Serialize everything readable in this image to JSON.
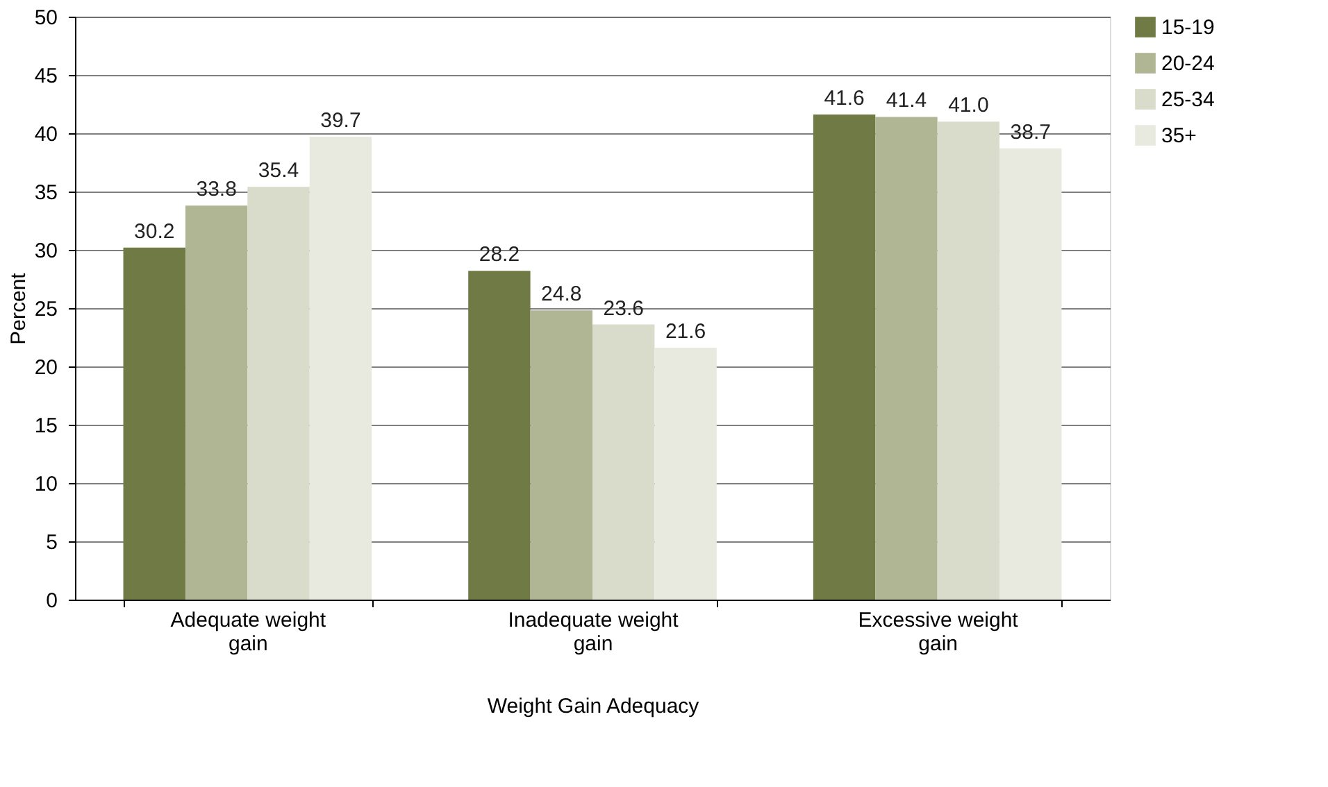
{
  "chart_data": {
    "type": "bar",
    "xlabel": "Weight Gain Adequacy",
    "ylabel": "Percent",
    "categories": [
      "Adequate weight gain",
      "Inadequate weight gain",
      "Excessive weight gain"
    ],
    "series": [
      {
        "name": "15-19",
        "color": "#6f7a45",
        "values": [
          30.2,
          28.2,
          41.6
        ]
      },
      {
        "name": "20-24",
        "color": "#b0b593",
        "values": [
          33.8,
          24.8,
          41.4
        ]
      },
      {
        "name": "25-34",
        "color": "#d9dccb",
        "values": [
          35.4,
          23.6,
          41.0
        ]
      },
      {
        "name": "35+",
        "color": "#e9eadf",
        "values": [
          39.7,
          21.6,
          38.7
        ]
      }
    ],
    "value_labels": [
      [
        "30.2",
        "28.2",
        "41.6"
      ],
      [
        "33.8",
        "24.8",
        "41.4"
      ],
      [
        "35.4",
        "23.6",
        "41.0"
      ],
      [
        "39.7",
        "21.6",
        "38.7"
      ]
    ],
    "ylim": [
      0,
      50
    ],
    "yticks": [
      0,
      5,
      10,
      15,
      20,
      25,
      30,
      35,
      40,
      45,
      50
    ],
    "grid": "y",
    "legend": "right"
  }
}
